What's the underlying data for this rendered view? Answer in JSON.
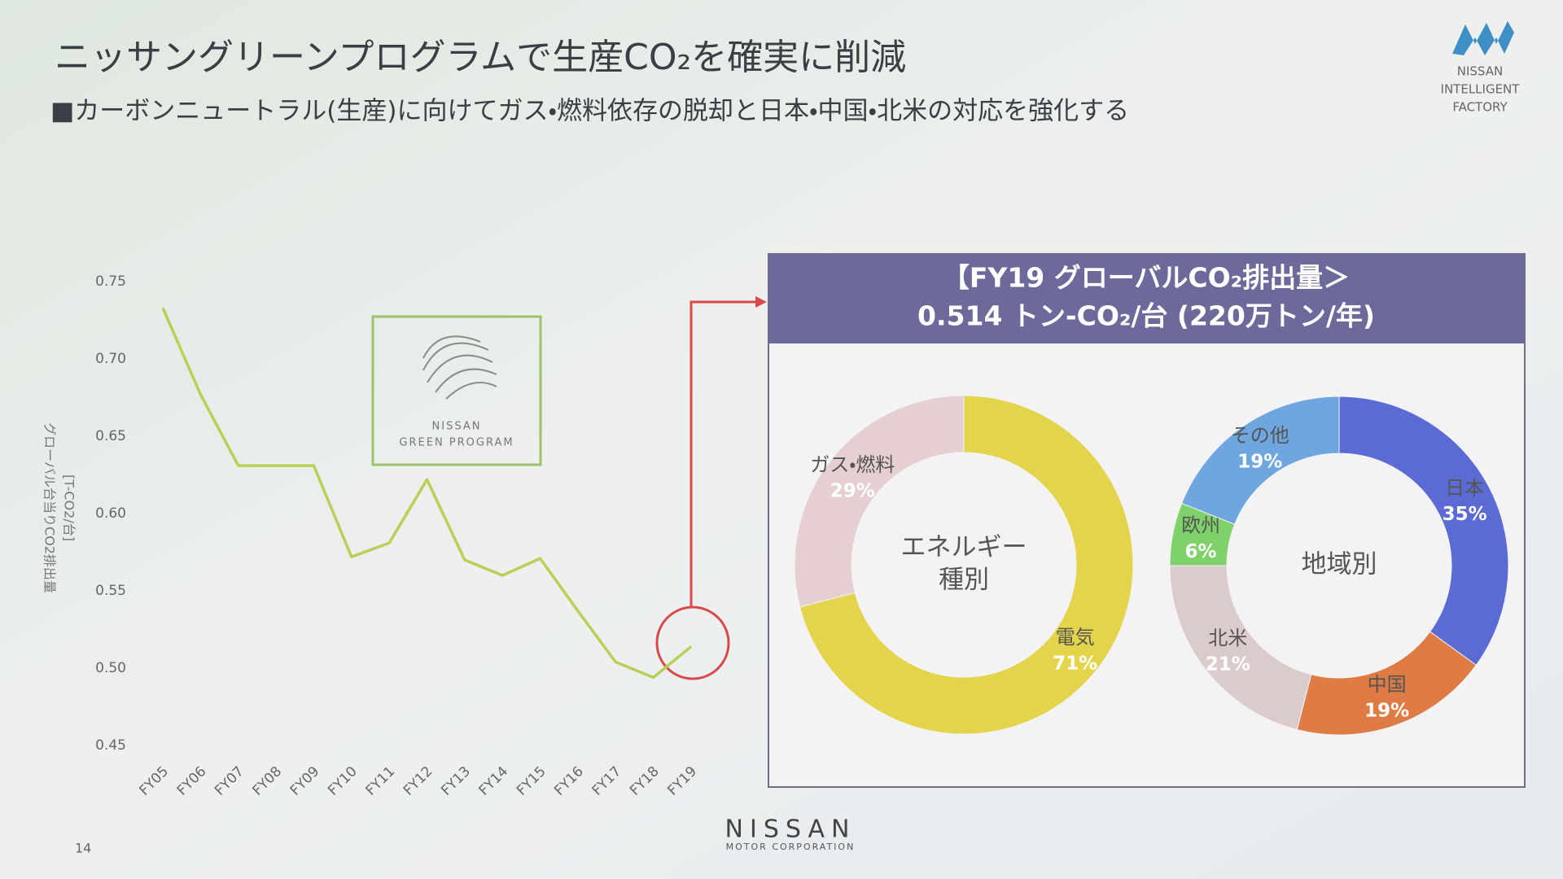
{
  "slide": {
    "title": "ニッサングリーンプログラムで生産CO₂を確実に削減",
    "subtitle": "■カーボンニュートラル(生産)に向けてガス・燃料依存の脱却と日本・中国・北米の対応を強化する",
    "logo_lines": [
      "NISSAN",
      "INTELLIGENT",
      "FACTORY"
    ],
    "green_program": [
      "NISSAN",
      "GREEN PROGRAM"
    ],
    "panel_title": [
      "【FY19 グローバルCO₂排出量＞",
      "0.514 トン-CO₂/台 (220万トン/年)"
    ],
    "footer_brand": "NISSAN",
    "footer_sub": "MOTOR CORPORATION",
    "page_number": "14"
  },
  "chart_data": [
    {
      "type": "line",
      "y_label": [
        "グローバル台当りCO2排出量",
        "[T-CO2/台]"
      ],
      "categories": [
        "FY05",
        "FY06",
        "FY07",
        "FY08",
        "FY09",
        "FY10",
        "FY11",
        "FY12",
        "FY13",
        "FY14",
        "FY15",
        "FY16",
        "FY17",
        "FY18",
        "FY19"
      ],
      "series": [
        {
          "color": "#b9cf55",
          "values": [
            0.733,
            0.677,
            0.631,
            0.631,
            0.631,
            0.572,
            0.581,
            0.622,
            0.57,
            0.56,
            0.571,
            0.537,
            0.504,
            0.494,
            0.514
          ]
        }
      ],
      "ylim": [
        0.45,
        0.75
      ],
      "yticks": [
        0.75,
        {
          "value": 0.7,
          "label": "0.70"
        },
        0.65,
        {
          "value": 0.6,
          "label": "0.60"
        },
        0.55,
        {
          "value": 0.5,
          "label": "0.50"
        },
        0.45
      ],
      "grid": false
    },
    {
      "type": "donut",
      "center_label": [
        "エネルギー",
        "種別"
      ],
      "categories": [
        "電気",
        "ガス・燃料"
      ],
      "values": [
        71,
        29
      ],
      "value_labels": [
        "71%",
        "29%"
      ],
      "colors": [
        "#e3d44c",
        "#e6cfd0"
      ]
    },
    {
      "type": "donut",
      "center_label": [
        "地域別"
      ],
      "categories": [
        "日本",
        "中国",
        "北米",
        "欧州",
        "その他"
      ],
      "values": [
        35,
        19,
        21,
        6,
        19
      ],
      "value_labels": [
        "35%",
        "19%",
        "21%",
        "6%",
        "19%"
      ],
      "colors": [
        "#5b6bd3",
        "#df7b44",
        "#dccbcd",
        "#7fd16a",
        "#6fa6e0"
      ]
    }
  ]
}
